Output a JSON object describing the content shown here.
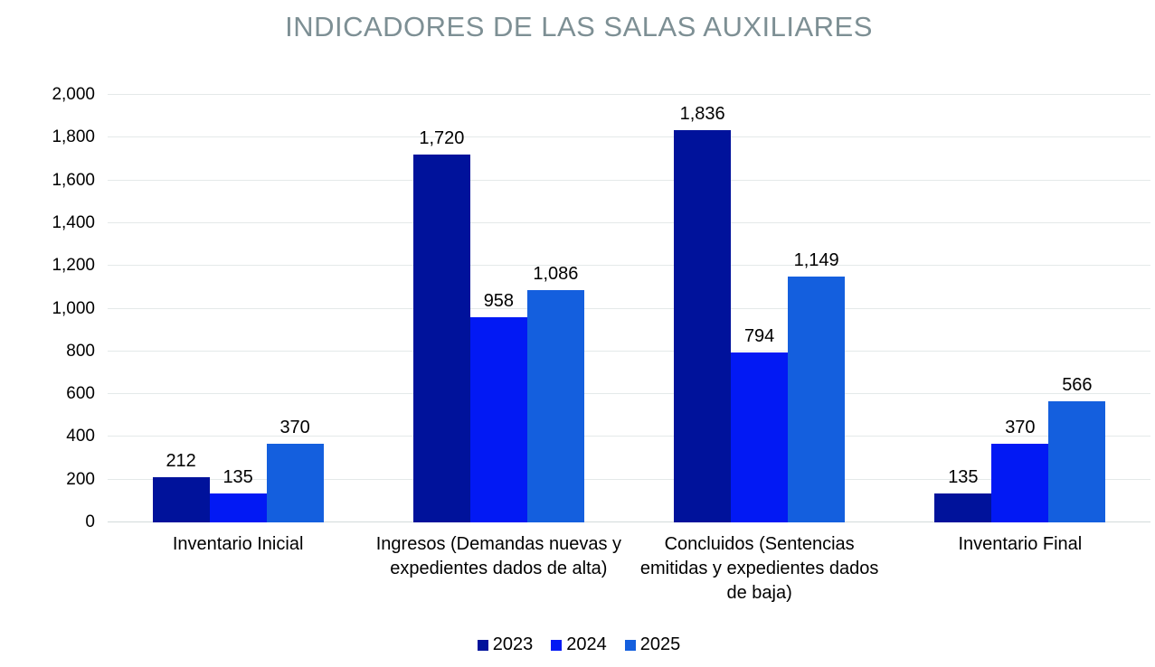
{
  "colors": {
    "title": "#7D8F94",
    "gridline": "#E4E9E9",
    "baseline": "#D3DADA",
    "text": "#000000"
  },
  "chart_data": {
    "type": "bar",
    "title": "INDICADORES DE LAS SALAS AUXILIARES",
    "categories": [
      "Inventario Inicial",
      "Ingresos (Demandas nuevas y expedientes dados de alta)",
      "Concluidos (Sentencias emitidas y expedientes dados de baja)",
      "Inventario Final"
    ],
    "series": [
      {
        "name": "2023",
        "color": "#00129B",
        "values": [
          212,
          1720,
          1836,
          135
        ]
      },
      {
        "name": "2024",
        "color": "#0219F4",
        "values": [
          135,
          958,
          794,
          370
        ]
      },
      {
        "name": "2025",
        "color": "#145FDE",
        "values": [
          370,
          1086,
          1149,
          566
        ]
      }
    ],
    "xlabel": "",
    "ylabel": "",
    "ylim": [
      0,
      2000
    ],
    "ytick_step": 200,
    "ytick_labels": [
      "0",
      "200",
      "400",
      "600",
      "800",
      "1,000",
      "1,200",
      "1,400",
      "1,600",
      "1,800",
      "2,000"
    ],
    "grid": true,
    "legend_position": "bottom",
    "data_labels": true
  }
}
